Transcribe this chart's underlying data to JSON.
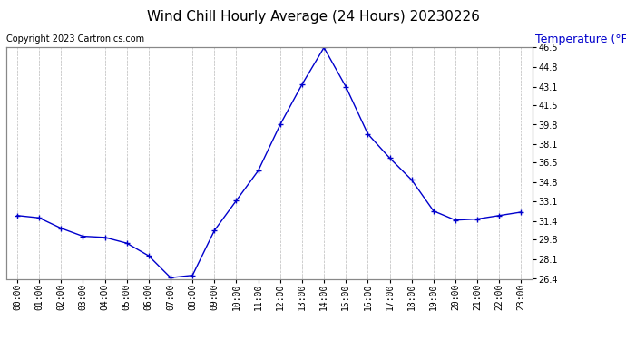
{
  "title": "Wind Chill Hourly Average (24 Hours) 20230226",
  "ylabel": "Temperature (°F)",
  "copyright_text": "Copyright 2023 Cartronics.com",
  "hours": [
    "00:00",
    "01:00",
    "02:00",
    "03:00",
    "04:00",
    "05:00",
    "06:00",
    "07:00",
    "08:00",
    "09:00",
    "10:00",
    "11:00",
    "12:00",
    "13:00",
    "14:00",
    "15:00",
    "16:00",
    "17:00",
    "18:00",
    "19:00",
    "20:00",
    "21:00",
    "22:00",
    "23:00"
  ],
  "values": [
    31.9,
    31.7,
    30.8,
    30.1,
    30.0,
    29.5,
    28.4,
    26.5,
    26.7,
    30.6,
    33.2,
    35.8,
    39.8,
    43.3,
    46.5,
    43.1,
    39.0,
    36.9,
    35.0,
    32.3,
    31.5,
    31.6,
    31.9,
    32.2
  ],
  "line_color": "#0000CC",
  "marker": "+",
  "marker_size": 5,
  "ylim_min": 26.4,
  "ylim_max": 46.5,
  "yticks": [
    26.4,
    28.1,
    29.8,
    31.4,
    33.1,
    34.8,
    36.5,
    38.1,
    39.8,
    41.5,
    43.1,
    44.8,
    46.5
  ],
  "background_color": "#ffffff",
  "plot_bg_color": "#ffffff",
  "grid_color": "#aaaaaa",
  "title_fontsize": 11,
  "tick_fontsize": 7,
  "copyright_fontsize": 7,
  "ylabel_color": "#0000CC",
  "ylabel_fontsize": 9
}
